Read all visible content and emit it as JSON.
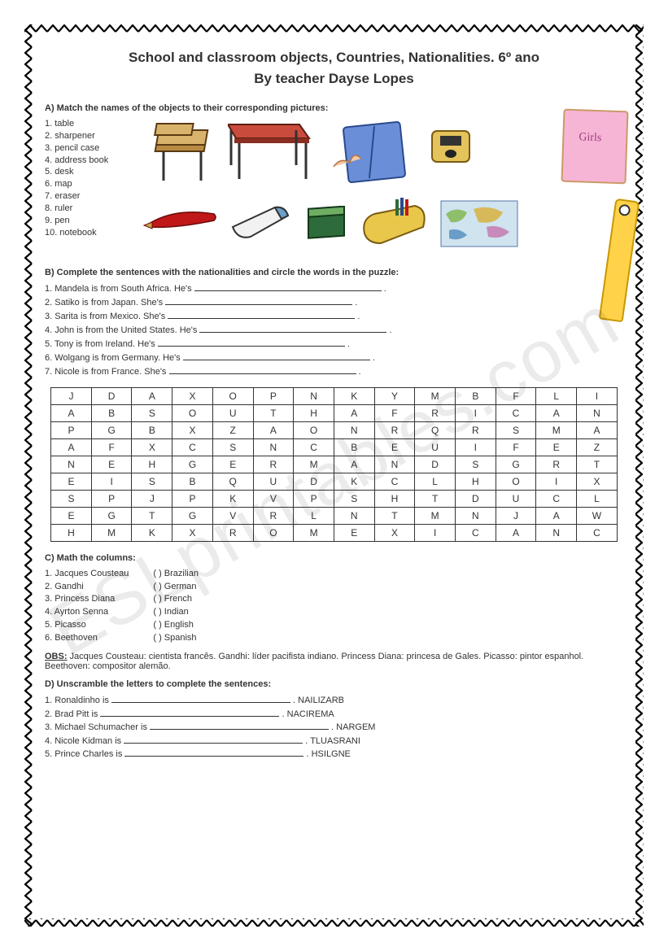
{
  "watermark": "ESLprintables.com",
  "title_line1": "School and classroom objects, Countries, Nationalities.    6º ano",
  "title_line2": "By teacher  Dayse Lopes",
  "sectionA": {
    "heading": "A) Match the names of the objects to their corresponding pictures:",
    "items": [
      "1. table",
      "2. sharpener",
      "3. pencil case",
      "4. address book",
      "5. desk",
      "6. map",
      "7. eraser",
      "8. ruler",
      "9. pen",
      "10. notebook"
    ]
  },
  "sectionB": {
    "heading": "B) Complete the sentences with the nationalities and circle the words in the puzzle:",
    "sentences": [
      "1. Mandela is from South Africa. He's",
      "2. Satiko is from Japan. She's",
      "3. Sarita is from Mexico. She's",
      "4. John is from the United States. He's",
      "5. Tony is from Ireland. He's",
      "6. Wolgang is from Germany. He's",
      "7. Nicole is from France. She's"
    ]
  },
  "puzzle": {
    "rows": [
      [
        "J",
        "D",
        "A",
        "X",
        "O",
        "P",
        "N",
        "K",
        "Y",
        "M",
        "B",
        "F",
        "L",
        "I"
      ],
      [
        "A",
        "B",
        "S",
        "O",
        "U",
        "T",
        "H",
        "A",
        "F",
        "R",
        "I",
        "C",
        "A",
        "N"
      ],
      [
        "P",
        "G",
        "B",
        "X",
        "Z",
        "A",
        "O",
        "N",
        "R",
        "Q",
        "R",
        "S",
        "M",
        "A"
      ],
      [
        "A",
        "F",
        "X",
        "C",
        "S",
        "N",
        "C",
        "B",
        "E",
        "U",
        "I",
        "F",
        "E",
        "Z"
      ],
      [
        "N",
        "E",
        "H",
        "G",
        "E",
        "R",
        "M",
        "A",
        "N",
        "D",
        "S",
        "G",
        "R",
        "T"
      ],
      [
        "E",
        "I",
        "S",
        "B",
        "Q",
        "U",
        "D",
        "K",
        "C",
        "L",
        "H",
        "O",
        "I",
        "X"
      ],
      [
        "S",
        "P",
        "J",
        "P",
        "K",
        "V",
        "P",
        "S",
        "H",
        "T",
        "D",
        "U",
        "C",
        "L"
      ],
      [
        "E",
        "G",
        "T",
        "G",
        "V",
        "R",
        "L",
        "N",
        "T",
        "M",
        "N",
        "J",
        "A",
        "W"
      ],
      [
        "H",
        "M",
        "K",
        "X",
        "R",
        "O",
        "M",
        "E",
        "X",
        "I",
        "C",
        "A",
        "N",
        "C"
      ]
    ],
    "cols": 14,
    "cell_border_color": "#333333",
    "font_size": 12
  },
  "sectionC": {
    "heading": "C) Math the columns:",
    "left": [
      "1. Jacques Cousteau",
      "2. Gandhi",
      "3. Princess Diana",
      "4. Ayrton Senna",
      "5. Picasso",
      "6. Beethoven"
    ],
    "right": [
      "(    ) Brazilian",
      "(    ) German",
      "(    ) French",
      "(    ) Indian",
      "(    ) English",
      "(    ) Spanish"
    ]
  },
  "obs_label": "OBS:",
  "obs_text": " Jacques Cousteau: cientista francês. Gandhi: líder pacifista indiano. Princess Diana: princesa de Gales. Picasso: pintor espanhol. Beethoven: compositor alemão.",
  "sectionD": {
    "heading": "D) Unscramble the letters to complete the sentences:",
    "items": [
      {
        "pre": "1. Ronaldinho is",
        "scramble": ". NAILIZARB"
      },
      {
        "pre": "2. Brad Pitt is",
        "scramble": ". NACIREMA"
      },
      {
        "pre": "3. Michael Schumacher is",
        "scramble": ". NARGEM"
      },
      {
        "pre": "4. Nicole Kidman is",
        "scramble": ". TLUASRANI"
      },
      {
        "pre": "5. Prince Charles is",
        "scramble": ". HSILGNE"
      }
    ]
  },
  "clipart": {
    "desk_color": "#d9b36b",
    "table_color": "#c94b3c",
    "notebook_color": "#6a8fd8",
    "sharpener_body": "#e4c35a",
    "pen_color": "#c01818",
    "eraser_color": "#e8e8e8",
    "box_color": "#2e6b3a",
    "pencilcase_color": "#e8c74a",
    "map_bg": "#cfe4ef",
    "notebook_pink": "#f7b5d6",
    "ruler_color": "#ffd24a"
  },
  "border": {
    "stroke": "#000000",
    "pattern": "zigzag"
  }
}
